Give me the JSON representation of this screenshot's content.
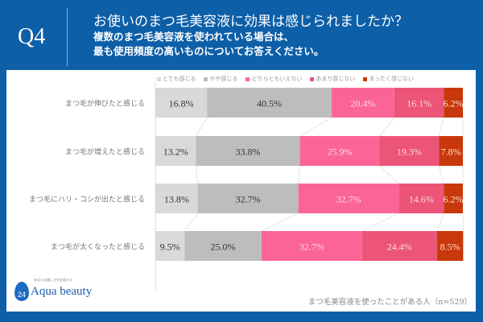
{
  "header": {
    "q": "Q4",
    "title": "お使いのまつ毛美容液に効果は感じられましたか？",
    "sub1": "複数のまつ毛美容液を使われている場合は、",
    "sub2": "最も使用頻度の高いものについてお答えください。"
  },
  "footer": {
    "note": "まつ毛美容液を使ったことがある人（n=529）",
    "logo": "Aqua beauty",
    "logo_num": "24",
    "logo_tag": "あなたの美しさを応援する"
  },
  "chart_data": {
    "type": "bar",
    "stacked": true,
    "orientation": "horizontal",
    "xlim": [
      0,
      100
    ],
    "legend": "top",
    "categories": [
      "まつ毛が伸びたと感じる",
      "まつ毛が増えたと感じる",
      "まつ毛にハリ・コシが出たと感じる",
      "まつ毛が太くなったと感じる"
    ],
    "series": [
      {
        "name": "とても感じる",
        "color": "#d9d9db",
        "label_color": "#333",
        "values": [
          16.8,
          13.2,
          13.8,
          9.5
        ]
      },
      {
        "name": "やや感じる",
        "color": "#bdbdbf",
        "label_color": "#333",
        "values": [
          40.5,
          33.8,
          32.7,
          25.0
        ]
      },
      {
        "name": "どちらともいえない",
        "color": "#fb6595",
        "label_color": "#ffd6e4",
        "values": [
          20.4,
          25.9,
          32.7,
          32.7
        ]
      },
      {
        "name": "あまり感じない",
        "color": "#ec5578",
        "label_color": "#ffd6e4",
        "values": [
          16.1,
          19.3,
          14.6,
          24.4
        ]
      },
      {
        "name": "まったく感じない",
        "color": "#c8380b",
        "label_color": "#ffe0d0",
        "values": [
          6.2,
          7.8,
          6.2,
          8.5
        ]
      }
    ]
  }
}
